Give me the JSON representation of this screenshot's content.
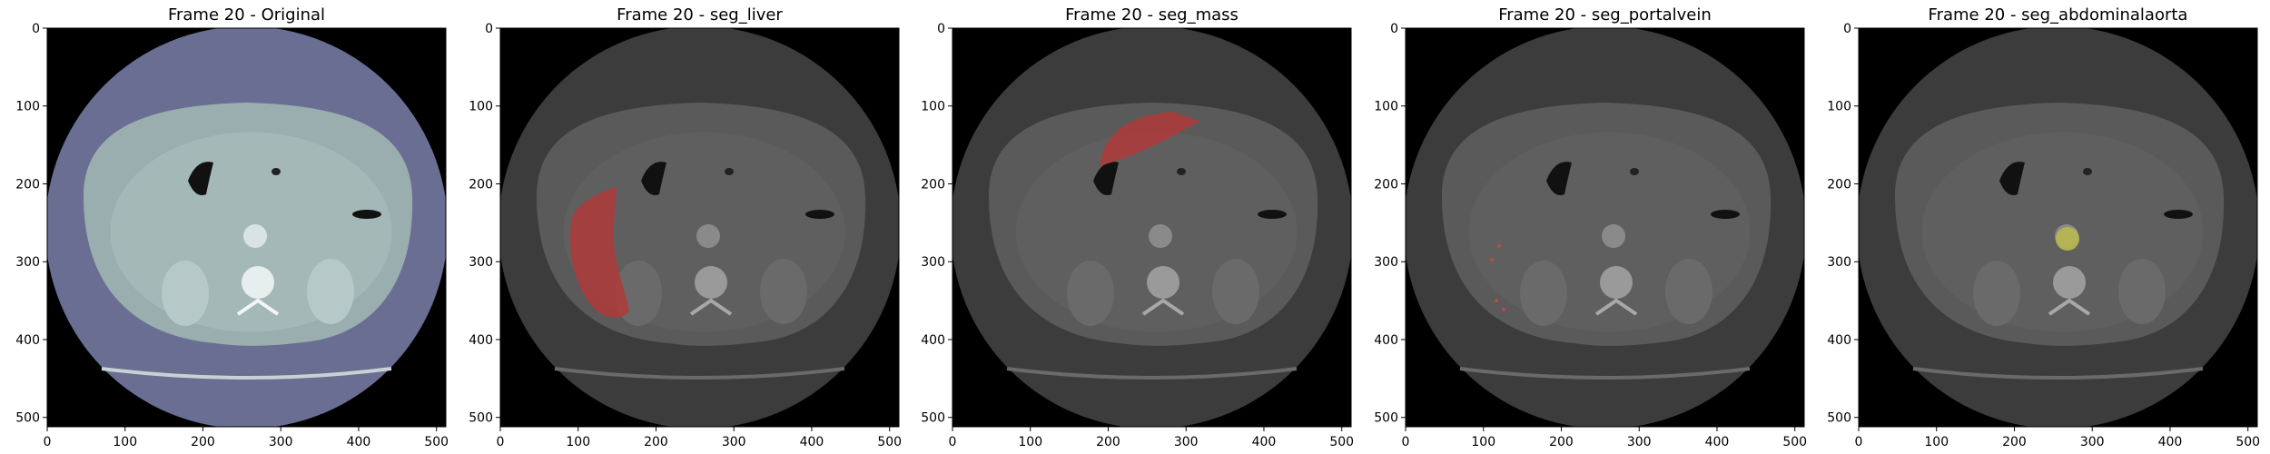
{
  "panels": [
    {
      "title": "Frame 20 - Original",
      "overlay": "none",
      "overlay_color": ""
    },
    {
      "title": "Frame 20 - seg_liver",
      "overlay": "liver",
      "overlay_color": "#b03a3a"
    },
    {
      "title": "Frame 20 - seg_mass",
      "overlay": "mass",
      "overlay_color": "#b03a3a"
    },
    {
      "title": "Frame 20 - seg_portalvein",
      "overlay": "portalvein",
      "overlay_color": "#c04848"
    },
    {
      "title": "Frame 20 - seg_abdominalaorta",
      "overlay": "abdominalaorta",
      "overlay_color": "#b8b850"
    }
  ],
  "x_ticks": [
    "0",
    "100",
    "200",
    "300",
    "400",
    "500"
  ],
  "y_ticks": [
    "0",
    "100",
    "200",
    "300",
    "400",
    "500"
  ],
  "colors": {
    "background": "#000000",
    "body_original": "#9aaeb0",
    "rim_original": "#6a6e92",
    "body_gray": "#5a5a5a",
    "rim_gray": "#3c3c3c"
  }
}
